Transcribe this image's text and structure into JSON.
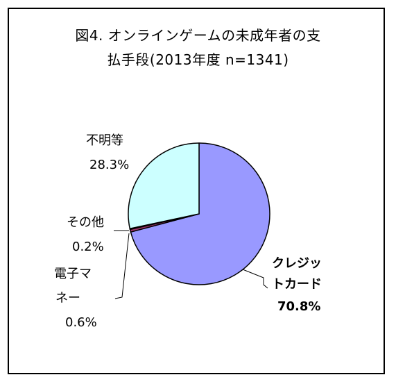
{
  "chart_data": {
    "type": "pie",
    "title_lines": [
      "図4. オンラインゲームの未成年者の支",
      "払手段(2013年度 n=1341)"
    ],
    "slices": [
      {
        "name_lines": [
          "クレジッ",
          "トカード"
        ],
        "value": 70.8,
        "value_label": "70.8%",
        "color": "#9999ff"
      },
      {
        "name_lines": [
          "電子マ",
          "ネー"
        ],
        "value": 0.6,
        "value_label": "0.6%",
        "color": "#993366"
      },
      {
        "name_lines": [
          "その他"
        ],
        "value": 0.2,
        "value_label": "0.2%",
        "color": "#ffffcc"
      },
      {
        "name_lines": [
          "不明等"
        ],
        "value": 28.3,
        "value_label": "28.3%",
        "color": "#ccffff"
      }
    ],
    "start_angle_deg": 0,
    "direction": "clockwise",
    "legend": "none",
    "labels": "outside with leader lines"
  }
}
